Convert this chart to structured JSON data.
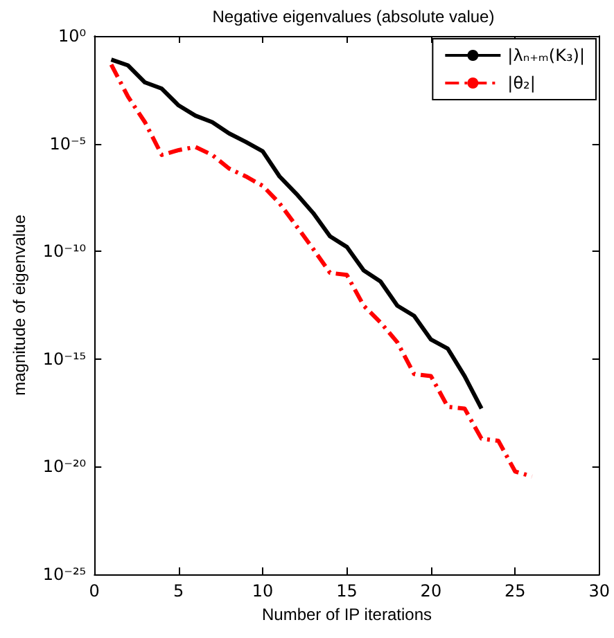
{
  "chart_data": {
    "type": "line",
    "title": "Negative eigenvalues (absolute value)",
    "xlabel": "Number of IP iterations",
    "ylabel": "magnitude of eigenvalue",
    "log": "y",
    "grid": false,
    "legend": "top right",
    "marker": "none",
    "xlim": [
      0,
      30
    ],
    "xticks": [
      0,
      5,
      10,
      15,
      20,
      25,
      30
    ],
    "ylim": [
      1e-25,
      1
    ],
    "yticks": [
      {
        "value": 1,
        "label": "10⁰"
      },
      {
        "value": 1e-05,
        "label": "10⁻⁵"
      },
      {
        "value": 1e-10,
        "label": "10⁻¹⁰"
      },
      {
        "value": 1e-15,
        "label": "10⁻¹⁵"
      },
      {
        "value": 1e-20,
        "label": "10⁻²⁰"
      },
      {
        "value": 1e-25,
        "label": "10⁻²⁵"
      }
    ],
    "x": [
      1,
      2,
      3,
      4,
      5,
      6,
      7,
      8,
      9,
      10,
      11,
      12,
      13,
      14,
      15,
      16,
      17,
      18,
      19,
      20,
      21,
      22,
      23,
      24,
      25,
      26
    ],
    "series": [
      {
        "name": "|λₙ₊ₘ(K₃)|",
        "color": "#000000",
        "line_style": "solid",
        "values": [
          0.08,
          0.043,
          0.007,
          0.0036,
          0.0006,
          0.0002,
          0.0001,
          3e-05,
          1.2e-05,
          4.4e-06,
          3e-07,
          4.7e-08,
          6e-09,
          5e-10,
          1.6e-10,
          1.3e-11,
          4e-12,
          3e-13,
          1e-13,
          8e-15,
          3e-15,
          1.6e-16,
          5e-18,
          null,
          null,
          null
        ]
      },
      {
        "name": "|θ₂|",
        "color": "#ff0000",
        "line_style": "dashed",
        "values": [
          0.047,
          0.0015,
          0.0001,
          3e-06,
          5e-06,
          7e-06,
          3e-06,
          7e-07,
          3e-07,
          1.1e-07,
          1.7e-08,
          1.5e-09,
          1.3e-10,
          1e-11,
          8e-12,
          3e-13,
          5e-14,
          6e-15,
          2e-16,
          1.6e-16,
          6e-18,
          5e-18,
          2e-19,
          1.6e-19,
          6e-21,
          3.5e-21
        ]
      }
    ]
  }
}
